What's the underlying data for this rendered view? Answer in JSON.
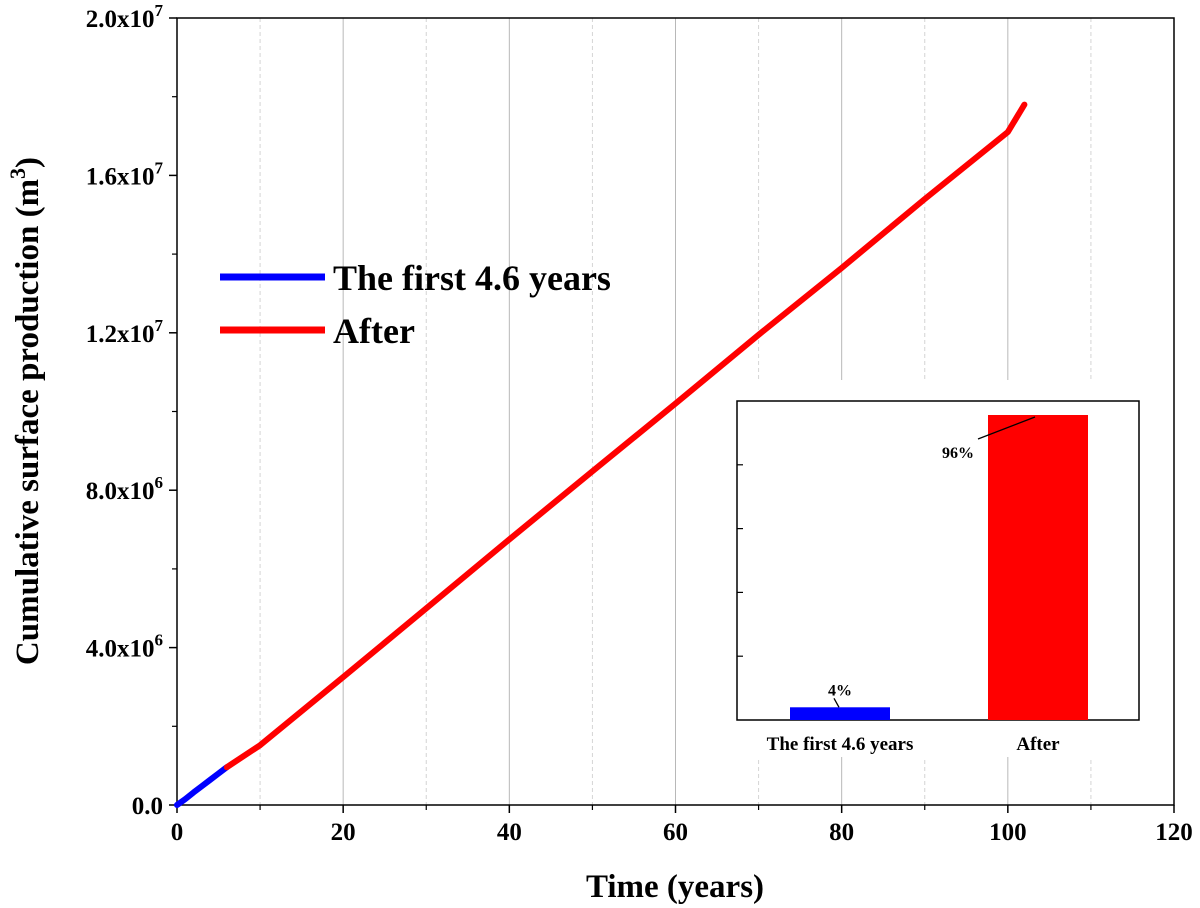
{
  "chart_data": [
    {
      "type": "line",
      "title": "",
      "xlabel": "Time (years)",
      "ylabel": "Cumulative surface production (m³)",
      "ylabel_parts": {
        "before": "Cumulative surface production (m",
        "sup": "3",
        "after": ")"
      },
      "xlim": [
        0,
        120
      ],
      "ylim": [
        0,
        20000000
      ],
      "x_ticks": [
        0,
        20,
        40,
        60,
        80,
        100,
        120
      ],
      "x_tick_labels": [
        "0",
        "20",
        "40",
        "60",
        "80",
        "100",
        "120"
      ],
      "y_ticks": [
        0,
        4000000,
        8000000,
        12000000,
        16000000,
        20000000
      ],
      "y_tick_labels": [
        {
          "base": "0.0",
          "exp": ""
        },
        {
          "base": "4.0x10",
          "exp": "6"
        },
        {
          "base": "8.0x10",
          "exp": "6"
        },
        {
          "base": "1.2x10",
          "exp": "7"
        },
        {
          "base": "1.6x10",
          "exp": "7"
        },
        {
          "base": "2.0x10",
          "exp": "7"
        }
      ],
      "grid": "vertical-minor",
      "legend_position": "upper-left",
      "series": [
        {
          "name": "The first 4.6 years",
          "color": "#0000ff",
          "x": [
            0,
            1,
            2,
            3,
            4,
            5,
            6
          ],
          "y": [
            0,
            150000,
            320000,
            480000,
            640000,
            800000,
            960000
          ]
        },
        {
          "name": "After",
          "color": "#ff0000",
          "x": [
            6,
            10,
            20,
            30,
            40,
            50,
            60,
            70,
            80,
            90,
            100,
            102
          ],
          "y": [
            960000,
            1520000,
            3250000,
            5000000,
            6750000,
            8480000,
            10200000,
            11950000,
            13650000,
            15400000,
            17100000,
            17800000
          ]
        }
      ]
    },
    {
      "type": "bar",
      "title": "",
      "categories": [
        "The first 4.6 years",
        "After"
      ],
      "values": [
        4,
        96
      ],
      "value_labels": [
        "4%",
        "96%"
      ],
      "colors": [
        "#0000ff",
        "#ff0000"
      ],
      "ylim": [
        0,
        100
      ],
      "y_tick_count": 5
    }
  ]
}
